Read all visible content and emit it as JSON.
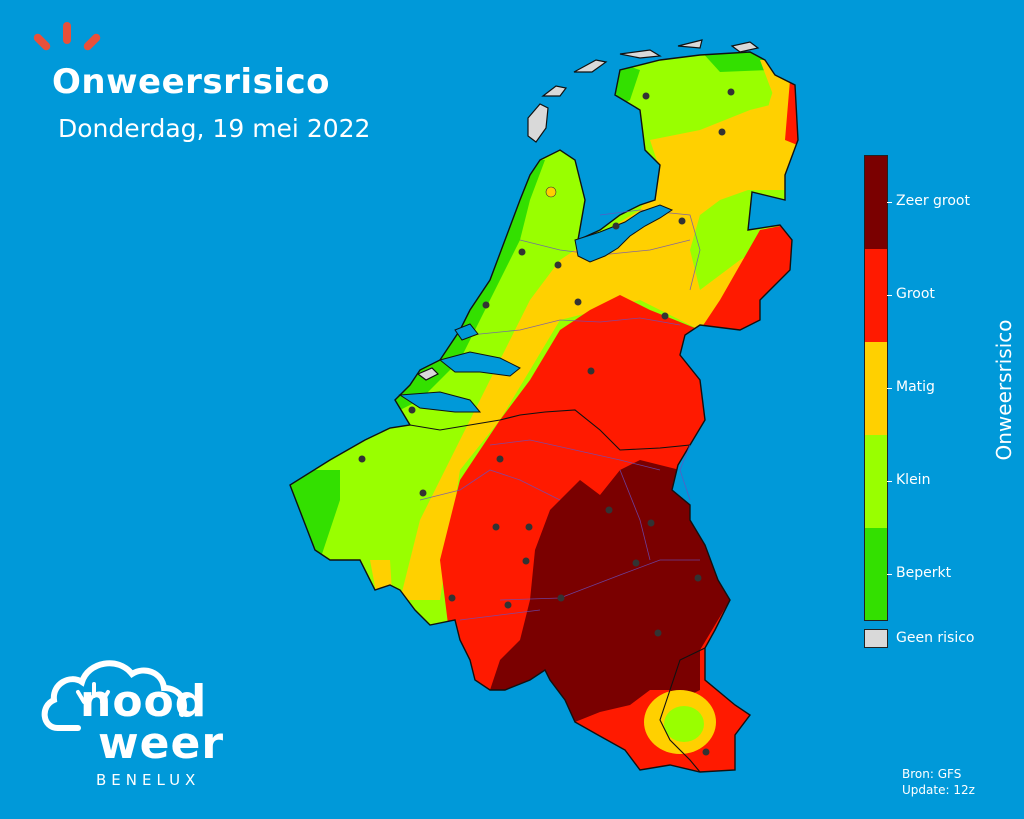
{
  "header": {
    "title": "Onweersrisico",
    "date": "Donderdag, 19 mei 2022"
  },
  "legend": {
    "axis_title": "Onweersrisico",
    "categories": [
      {
        "label": "Zeer groot",
        "color": "#7a0000"
      },
      {
        "label": "Groot",
        "color": "#ff1a00"
      },
      {
        "label": "Matig",
        "color": "#ffd000"
      },
      {
        "label": "Klein",
        "color": "#99ff00"
      },
      {
        "label": "Beperkt",
        "color": "#33e000"
      }
    ],
    "no_risk": {
      "label": "Geen risico",
      "color": "#d9d9d9"
    }
  },
  "logo": {
    "line1": "nood",
    "line2": "weer",
    "line3": "BENELUX"
  },
  "source": {
    "line1": "Bron: GFS",
    "line2": "Update: 12z"
  },
  "colors": {
    "sea": "#0099d9",
    "brand_rays": "#e8503a"
  }
}
